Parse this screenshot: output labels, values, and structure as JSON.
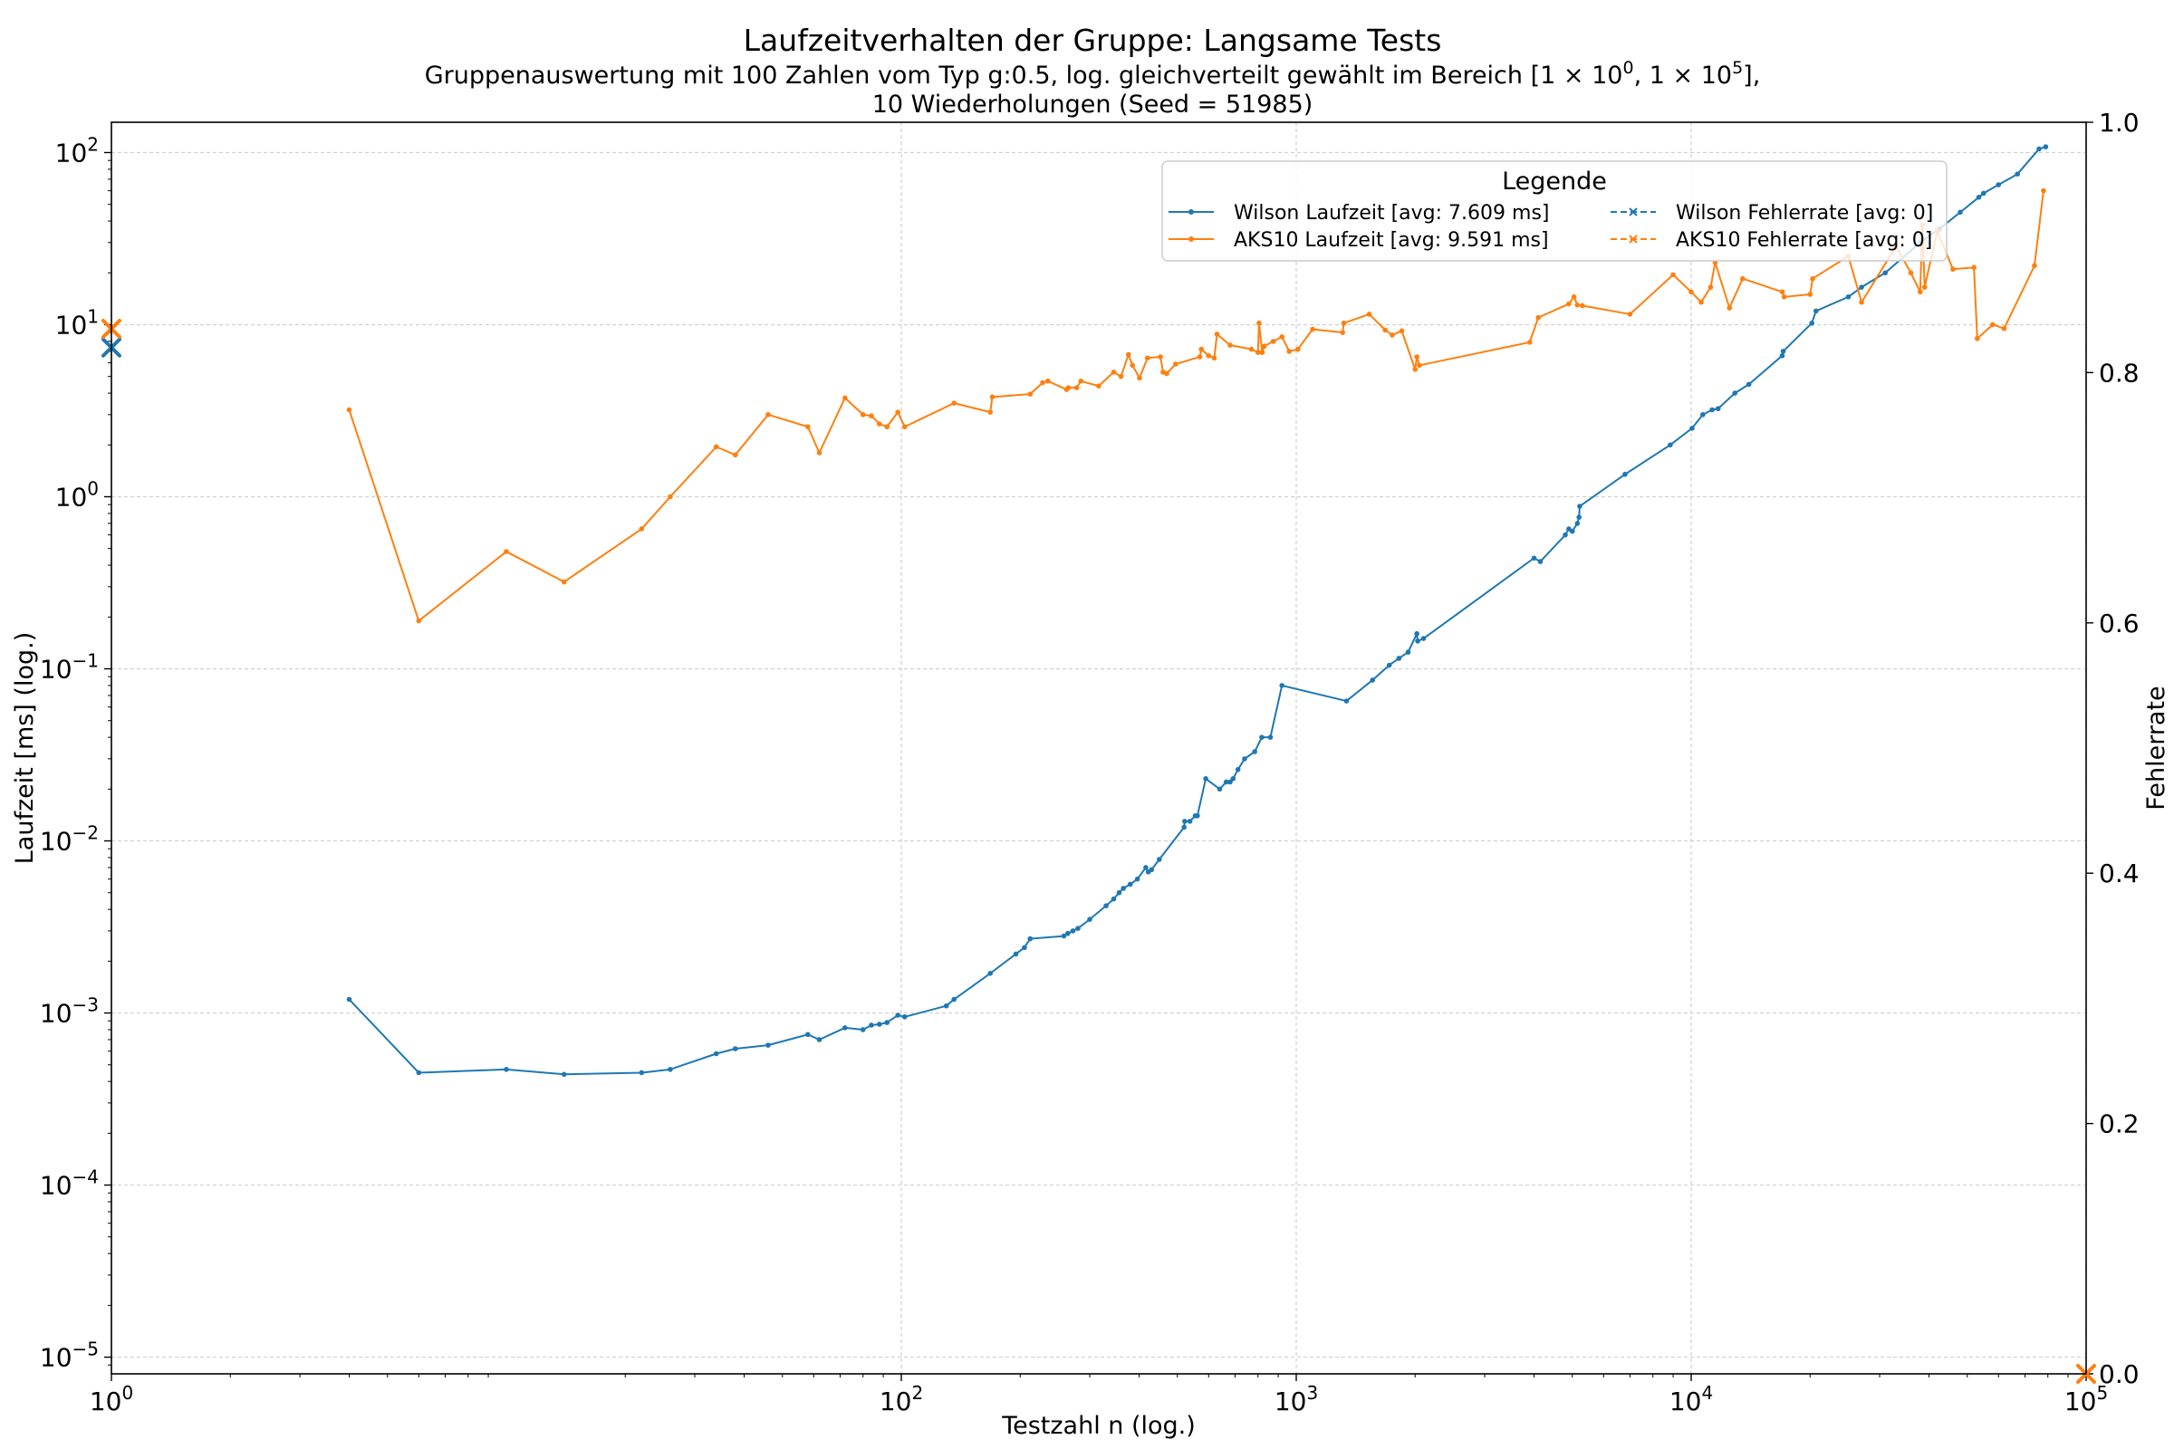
{
  "chart_data": {
    "type": "line",
    "title": "Laufzeitverhalten der Gruppe: Langsame Tests",
    "subtitle_line1_prefix": "Gruppenauswertung mit 100 Zahlen vom Typ g:0.5, log. gleichverteilt gewählt im Bereich [1 × 10",
    "subtitle_sup1": "0",
    "subtitle_mid": ", 1 × 10",
    "subtitle_sup2": "5",
    "subtitle_end": "],",
    "subtitle_line2": "10 Wiederholungen (Seed = 51985)",
    "xlabel": "Testzahl n (log.)",
    "ylabel": "Laufzeit [ms] (log.)",
    "y2label": "Fehlerrate",
    "xscale": "log",
    "yscale": "log",
    "xlim": [
      1,
      100000
    ],
    "ylim": [
      8e-06,
      150
    ],
    "y2lim": [
      0.0,
      1.0
    ],
    "grid": true,
    "x_ticks": [
      {
        "value": 1,
        "base": "10",
        "exp": "0"
      },
      {
        "value": 100,
        "base": "10",
        "exp": "2"
      },
      {
        "value": 1000,
        "base": "10",
        "exp": "3"
      },
      {
        "value": 10000,
        "base": "10",
        "exp": "4"
      },
      {
        "value": 100000,
        "base": "10",
        "exp": "5"
      }
    ],
    "y_ticks": [
      {
        "value": 100,
        "base": "10",
        "exp": "2"
      },
      {
        "value": 10,
        "base": "10",
        "exp": "1"
      },
      {
        "value": 1,
        "base": "10",
        "exp": "0"
      },
      {
        "value": 0.1,
        "base": "10",
        "exp": "−1"
      },
      {
        "value": 0.01,
        "base": "10",
        "exp": "−2"
      },
      {
        "value": 0.001,
        "base": "10",
        "exp": "−3"
      },
      {
        "value": 0.0001,
        "base": "10",
        "exp": "−4"
      },
      {
        "value": 1e-05,
        "base": "10",
        "exp": "−5"
      }
    ],
    "y2_ticks": [
      "0.0",
      "0.2",
      "0.4",
      "0.6",
      "0.8",
      "1.0"
    ],
    "legend": {
      "title": "Legende",
      "placement": "upper-right",
      "entries": [
        {
          "label": "Wilson Laufzeit [avg: 7.609 ms]",
          "color": "#1f77b4",
          "style": "solid-dot"
        },
        {
          "label": "AKS10 Laufzeit [avg: 9.591 ms]",
          "color": "#ff7f0e",
          "style": "solid-dot"
        },
        {
          "label": "Wilson Fehlerrate [avg: 0]",
          "color": "#1f77b4",
          "style": "dashed-x"
        },
        {
          "label": "AKS10 Fehlerrate [avg: 0]",
          "color": "#ff7f0e",
          "style": "dashed-x"
        }
      ]
    },
    "series": [
      {
        "name": "Wilson Laufzeit [avg: 7.609 ms]",
        "color": "#1f77b4",
        "axis": "left",
        "points": [
          [
            4,
            0.0012
          ],
          [
            6,
            0.00045
          ],
          [
            10,
            0.00047
          ],
          [
            14,
            0.00044
          ],
          [
            22,
            0.00045
          ],
          [
            26,
            0.00047
          ],
          [
            34,
            0.00058
          ],
          [
            38,
            0.00062
          ],
          [
            46,
            0.00065
          ],
          [
            58,
            0.00075
          ],
          [
            62,
            0.0007
          ],
          [
            72,
            0.00082
          ],
          [
            80,
            0.0008
          ],
          [
            84,
            0.00085
          ],
          [
            88,
            0.00086
          ],
          [
            92,
            0.00088
          ],
          [
            98,
            0.00097
          ],
          [
            102,
            0.00095
          ],
          [
            130,
            0.0011
          ],
          [
            136,
            0.0012
          ],
          [
            168,
            0.0017
          ],
          [
            195,
            0.0022
          ],
          [
            205,
            0.0024
          ],
          [
            212,
            0.0027
          ],
          [
            258,
            0.0028
          ],
          [
            264,
            0.0029
          ],
          [
            272,
            0.003
          ],
          [
            280,
            0.0031
          ],
          [
            300,
            0.0035
          ],
          [
            330,
            0.0042
          ],
          [
            345,
            0.0046
          ],
          [
            356,
            0.005
          ],
          [
            365,
            0.0053
          ],
          [
            380,
            0.0056
          ],
          [
            396,
            0.006
          ],
          [
            416,
            0.007
          ],
          [
            422,
            0.0066
          ],
          [
            430,
            0.0068
          ],
          [
            450,
            0.0078
          ],
          [
            520,
            0.012
          ],
          [
            522,
            0.013
          ],
          [
            538,
            0.013
          ],
          [
            555,
            0.014
          ],
          [
            562,
            0.014
          ],
          [
            590,
            0.023
          ],
          [
            640,
            0.02
          ],
          [
            665,
            0.022
          ],
          [
            680,
            0.022
          ],
          [
            692,
            0.023
          ],
          [
            712,
            0.026
          ],
          [
            740,
            0.03
          ],
          [
            785,
            0.033
          ],
          [
            818,
            0.04
          ],
          [
            860,
            0.04
          ],
          [
            920,
            0.08
          ],
          [
            1340,
            0.065
          ],
          [
            1560,
            0.086
          ],
          [
            1720,
            0.105
          ],
          [
            1820,
            0.115
          ],
          [
            1920,
            0.125
          ],
          [
            2020,
            0.16
          ],
          [
            2030,
            0.145
          ],
          [
            2100,
            0.15
          ],
          [
            4000,
            0.44
          ],
          [
            4150,
            0.42
          ],
          [
            4800,
            0.6
          ],
          [
            4900,
            0.65
          ],
          [
            5000,
            0.63
          ],
          [
            5150,
            0.7
          ],
          [
            5200,
            0.76
          ],
          [
            5220,
            0.88
          ],
          [
            6800,
            1.35
          ],
          [
            8850,
            2.0
          ],
          [
            10050,
            2.5
          ],
          [
            10700,
            3.0
          ],
          [
            11300,
            3.2
          ],
          [
            11700,
            3.25
          ],
          [
            12900,
            4.0
          ],
          [
            14000,
            4.5
          ],
          [
            17000,
            6.6
          ],
          [
            17100,
            7.0
          ],
          [
            20200,
            10.2
          ],
          [
            20700,
            12.0
          ],
          [
            25000,
            14.5
          ],
          [
            27000,
            16.5
          ],
          [
            31000,
            20.0
          ],
          [
            38000,
            30.0
          ],
          [
            42500,
            36.0
          ],
          [
            48000,
            45.0
          ],
          [
            53500,
            55.0
          ],
          [
            55000,
            58.0
          ],
          [
            60000,
            65.0
          ],
          [
            67000,
            75.0
          ],
          [
            76000,
            105.0
          ],
          [
            79000,
            108.0
          ]
        ]
      },
      {
        "name": "AKS10 Laufzeit [avg: 9.591 ms]",
        "color": "#ff7f0e",
        "axis": "left",
        "points": [
          [
            4,
            3.2
          ],
          [
            6,
            0.19
          ],
          [
            10,
            0.48
          ],
          [
            14,
            0.32
          ],
          [
            22,
            0.65
          ],
          [
            26,
            1.0
          ],
          [
            34,
            1.95
          ],
          [
            38,
            1.75
          ],
          [
            46,
            3.0
          ],
          [
            58,
            2.55
          ],
          [
            62,
            1.8
          ],
          [
            72,
            3.75
          ],
          [
            80,
            3.0
          ],
          [
            84,
            2.95
          ],
          [
            88,
            2.65
          ],
          [
            92,
            2.55
          ],
          [
            98,
            3.1
          ],
          [
            102,
            2.55
          ],
          [
            136,
            3.5
          ],
          [
            168,
            3.1
          ],
          [
            170,
            3.8
          ],
          [
            212,
            3.95
          ],
          [
            228,
            4.6
          ],
          [
            235,
            4.7
          ],
          [
            262,
            4.2
          ],
          [
            265,
            4.3
          ],
          [
            278,
            4.3
          ],
          [
            285,
            4.7
          ],
          [
            316,
            4.4
          ],
          [
            345,
            5.3
          ],
          [
            360,
            5.0
          ],
          [
            376,
            6.7
          ],
          [
            385,
            5.8
          ],
          [
            401,
            4.9
          ],
          [
            420,
            6.4
          ],
          [
            453,
            6.5
          ],
          [
            460,
            5.3
          ],
          [
            470,
            5.2
          ],
          [
            495,
            5.9
          ],
          [
            570,
            6.5
          ],
          [
            575,
            7.2
          ],
          [
            600,
            6.6
          ],
          [
            620,
            6.4
          ],
          [
            630,
            8.8
          ],
          [
            680,
            7.6
          ],
          [
            770,
            7.2
          ],
          [
            800,
            6.9
          ],
          [
            805,
            10.2
          ],
          [
            820,
            6.9
          ],
          [
            830,
            7.5
          ],
          [
            875,
            8.0
          ],
          [
            920,
            8.5
          ],
          [
            960,
            7.0
          ],
          [
            1010,
            7.2
          ],
          [
            1100,
            9.4
          ],
          [
            1310,
            9.0
          ],
          [
            1320,
            10.2
          ],
          [
            1530,
            11.5
          ],
          [
            1680,
            9.3
          ],
          [
            1750,
            8.7
          ],
          [
            1850,
            9.2
          ],
          [
            2000,
            5.5
          ],
          [
            2020,
            6.5
          ],
          [
            2050,
            5.8
          ],
          [
            3900,
            7.9
          ],
          [
            4100,
            11.0
          ],
          [
            4900,
            13.2
          ],
          [
            5050,
            14.5
          ],
          [
            5150,
            13.0
          ],
          [
            5300,
            12.9
          ],
          [
            7000,
            11.5
          ],
          [
            9000,
            19.5
          ],
          [
            10000,
            15.5
          ],
          [
            10600,
            13.5
          ],
          [
            11200,
            16.5
          ],
          [
            11500,
            23.0
          ],
          [
            12500,
            12.5
          ],
          [
            13500,
            18.5
          ],
          [
            17000,
            15.5
          ],
          [
            17200,
            14.5
          ],
          [
            20000,
            15.0
          ],
          [
            20300,
            18.5
          ],
          [
            25000,
            25.0
          ],
          [
            27000,
            13.5
          ],
          [
            33000,
            28.5
          ],
          [
            36000,
            20.0
          ],
          [
            38000,
            15.5
          ],
          [
            38500,
            38.0
          ],
          [
            39000,
            16.5
          ],
          [
            42000,
            35.0
          ],
          [
            46000,
            21.0
          ],
          [
            52000,
            21.5
          ],
          [
            53000,
            8.3
          ],
          [
            58000,
            10.0
          ],
          [
            62000,
            9.5
          ],
          [
            74000,
            22.0
          ],
          [
            78000,
            60.0
          ]
        ]
      },
      {
        "name": "Wilson Fehlerrate [avg: 0]",
        "color": "#1f77b4",
        "axis": "right",
        "points": [
          [
            1,
            0.82
          ]
        ]
      },
      {
        "name": "AKS10 Fehlerrate [avg: 0]",
        "color": "#ff7f0e",
        "axis": "right",
        "points": [
          [
            1,
            0.835
          ],
          [
            100000,
            0.0
          ]
        ]
      }
    ]
  }
}
